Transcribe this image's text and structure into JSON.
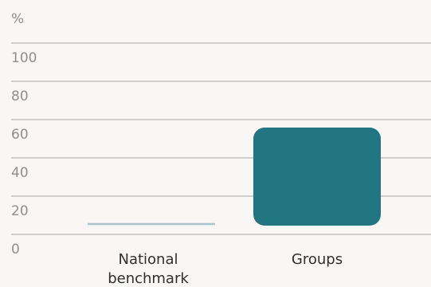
{
  "chart_data": {
    "type": "bar",
    "unit_label": "%",
    "categories": [
      "National benchmark",
      "Groups"
    ],
    "category_label_lines": [
      [
        "National",
        "benchmark"
      ],
      [
        "Groups"
      ]
    ],
    "values": [
      2.5,
      58
    ],
    "yticks": [
      0,
      20,
      40,
      60,
      80,
      100
    ],
    "ylim": [
      0,
      100
    ],
    "grid": true,
    "colors": {
      "benchmark_line": "#a9c4cf",
      "bar": "#227682",
      "gridline": "#cfcfcf",
      "tick_text": "#8f8f8f",
      "category_text": "#2f2f2f"
    }
  }
}
